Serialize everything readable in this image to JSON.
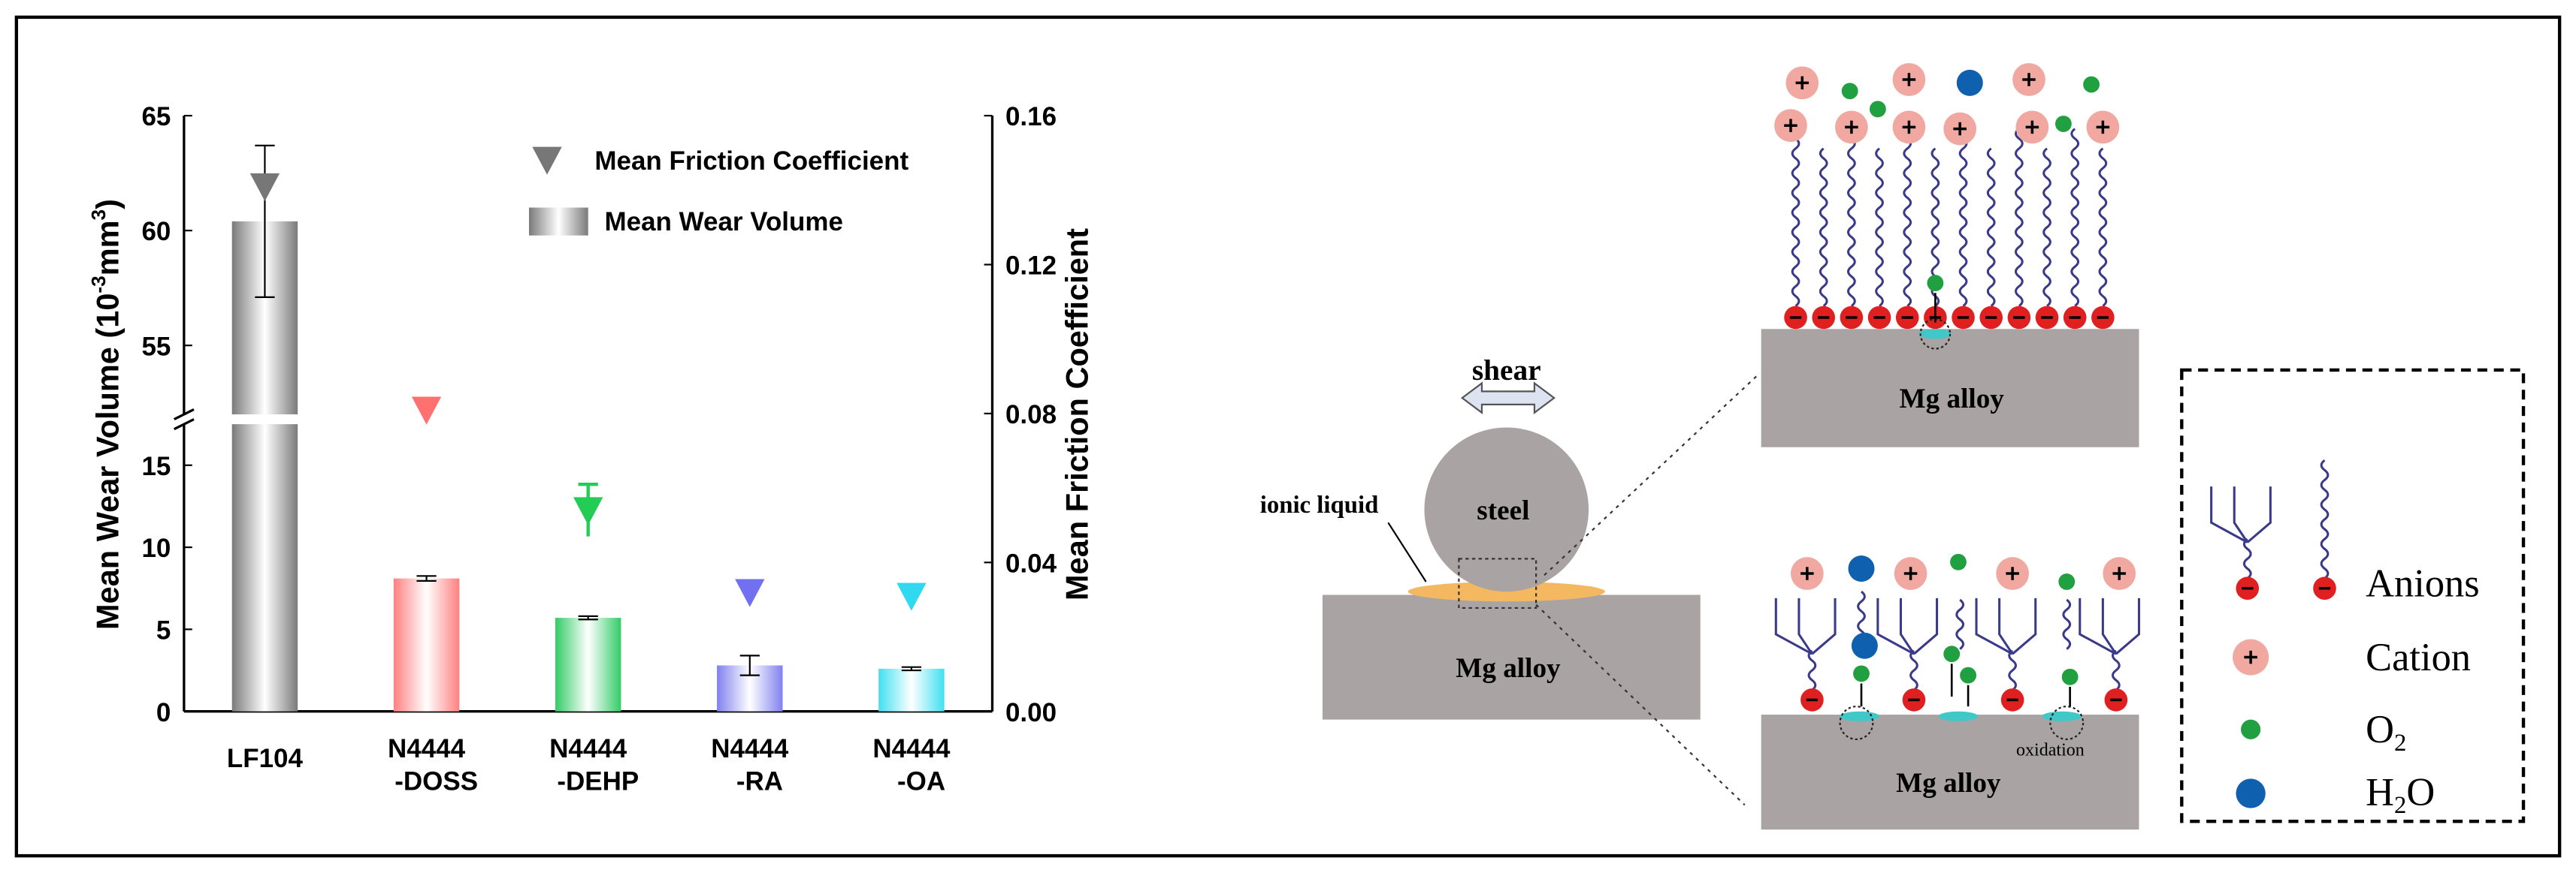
{
  "chart_data": {
    "type": "bar",
    "categories": [
      "LF104",
      [
        "N4444",
        "-DOSS"
      ],
      [
        "N4444",
        "-DEHP"
      ],
      [
        "N4444",
        "-RA"
      ],
      [
        "N4444",
        "-OA"
      ]
    ],
    "series": [
      {
        "name": "Mean Wear Volume",
        "type": "bar",
        "values": [
          60.4,
          8.1,
          5.7,
          2.8,
          2.6
        ],
        "errors": [
          3.3,
          0.15,
          0.1,
          0.6,
          0.1
        ],
        "colors": [
          "#7a7a7a",
          "#ff8080",
          "#33cc66",
          "#8080f0",
          "#40e0f0"
        ]
      },
      {
        "name": "Mean Friction Coefficient",
        "type": "scatter",
        "axis": "y2",
        "marker": "triangle-down",
        "color": "#777777",
        "values": [
          0.141,
          0.081,
          0.054,
          0.032,
          0.031
        ],
        "errors": [
          0.002,
          0.003,
          0.007,
          0.003,
          0.003
        ],
        "colors": [
          "#777777",
          "#ff7070",
          "#22cc55",
          "#7070f0",
          "#30d8f0"
        ]
      }
    ],
    "ylabel": [
      "Mean Wear Volume (10",
      "-3",
      "mm",
      "3",
      ")"
    ],
    "y2label": "Mean Friction Coefficient",
    "ylim": [
      0,
      65
    ],
    "ybreak": [
      17.5,
      52
    ],
    "yticks": [
      0,
      5,
      10,
      15,
      55,
      60,
      65
    ],
    "y2lim": [
      0,
      0.16
    ],
    "y2ticks": [
      {
        "value": 0,
        "label": "0.00"
      },
      0.04,
      0.08,
      0.12,
      0.16
    ],
    "legend": "upper right"
  },
  "diagram": {
    "shear": "shear",
    "steel": "steel",
    "ionic_liquid": "ionic liquid",
    "substrate_labels": [
      "Mg alloy",
      "Mg alloy",
      "Mg alloy"
    ],
    "oxidation": "oxidation",
    "legend": {
      "anions": "Anions",
      "cation": "Cation",
      "o2": [
        "O",
        "2"
      ],
      "h2o": [
        "H",
        "2",
        "O"
      ]
    }
  }
}
